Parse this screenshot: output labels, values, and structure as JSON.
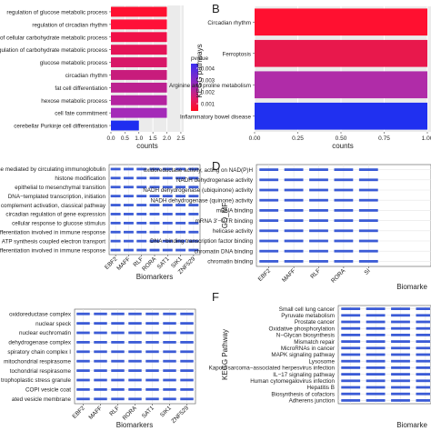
{
  "chart_data": [
    {
      "panel": "A",
      "type": "bar",
      "orientation": "horizontal",
      "categories": [
        "regulation of glucose metabolic process",
        "regulation of circadian rhythm",
        "of cellular carbohydrate metabolic process",
        "egulation of carbohydrate metabolic process",
        "glucose metabolic process",
        "circadian rhythm",
        "fat cell differentiation",
        "hexose metabolic process",
        "cell fate commitment",
        "cerebellar Purkinje cell differentiation"
      ],
      "values": [
        2,
        2,
        2,
        2,
        2,
        2,
        2,
        2,
        2,
        1
      ],
      "colors": [
        "#ff1030",
        "#ff1038",
        "#f01048",
        "#e41458",
        "#d81868",
        "#c81c7c",
        "#bc2090",
        "#b424a0",
        "#a42ab8",
        "#1f2df0"
      ],
      "xlabel": "counts",
      "xticks": [
        "0.0",
        "0.5",
        "1.0",
        "1.5",
        "2.0",
        "2.5"
      ],
      "xlim": [
        0,
        2.6
      ],
      "legend": {
        "title": "pvalue",
        "ticks": [
          "0.004",
          "0.003",
          "0.002",
          "0.001"
        ]
      }
    },
    {
      "panel": "B",
      "type": "bar",
      "orientation": "horizontal",
      "categories": [
        "Circadian rhythm",
        "Ferroptosis",
        "Arginine and proline metabolism",
        "Inflammatory bowel disease"
      ],
      "values": [
        1,
        1,
        1,
        1
      ],
      "colors": [
        "#ff1030",
        "#e8184c",
        "#b02ca8",
        "#2030f0"
      ],
      "xlabel": "counts",
      "ylabel": "KEGG pathways",
      "xticks": [
        "0.00",
        "0.25",
        "0.50",
        "0.75",
        "1.00"
      ],
      "xlim": [
        0,
        1
      ]
    },
    {
      "panel": "C",
      "type": "heatmap",
      "rows": [
        "d immune response mediated by circulating immunoglobulin",
        "histone modification",
        "epithelial to mesenchymal transition",
        "DNA−templated transcription, initiation",
        "complement activation, classical pathway",
        "circadian regulation of gene expression",
        "cellular response to glucose stimulus",
        "alpha−beta T cell differentiation involved in immune response",
        "ATP synthesis coupled electron transport",
        "differentiation involved in immune response"
      ],
      "columns": [
        "EBF2",
        "MAFF",
        "RLF",
        "RORA",
        "SAT1",
        "SIK1",
        "ZNF529"
      ],
      "xlabel": "Biomarkers"
    },
    {
      "panel": "D",
      "type": "heatmap",
      "rows": [
        "oxidoreductase activity, acting on NAD(P)H",
        "NADH dehydrogenase activity",
        "NADH dehydrogenase (ubiquinone) activity",
        "NADH dehydrogenase (quinone) activity",
        "mRNA binding",
        "mRNA 3'−UTR binding",
        "helicase activity",
        "DNA−binding transcription factor binding",
        "chromatin DNA binding",
        "chromatin binding"
      ],
      "columns": [
        "EBF2",
        "MAFF",
        "RLF",
        "RORA",
        "SI"
      ],
      "ylabel": "GO_MF",
      "xlabel": "Biomarke"
    },
    {
      "panel": "E",
      "type": "heatmap",
      "rows": [
        "oxidoreductase complex",
        "nuclear speck",
        "nuclear euchromatin",
        "dehydrogenase complex",
        "spiratory chain complex I",
        "mitochondrial respirasome",
        "tochondrial respirasome",
        "trophoplastic stress granule",
        "COPI vesicle coat",
        "ated vesicle membrane"
      ],
      "columns": [
        "EBF2",
        "MAFF",
        "RLF",
        "RORA",
        "SAT1",
        "SIK1",
        "ZNF529"
      ],
      "xlabel": "Biomarkers"
    },
    {
      "panel": "F",
      "type": "heatmap",
      "rows": [
        "Small cell lung cancer",
        "Pyruvate metabolism",
        "Prostate cancer",
        "Oxidative phosphorylation",
        "N−Glycan biosynthesis",
        "Mismatch repair",
        "MicroRNAs in cancer",
        "MAPK signaling pathway",
        "Lysosome",
        "Kaposi sarcoma−associated herpesvirus infection",
        "IL−17 signaling pathway",
        "Human cytomegalovirus infection",
        "Hepatitis B",
        "Biosynthesis of cofactors",
        "Adherens junction"
      ],
      "columns": [],
      "ylabel": "KEGG Pathway",
      "xlabel": "Biomarke"
    }
  ],
  "panel_letters": [
    "B",
    "D",
    "F"
  ],
  "colors": {
    "cell": "#3b5bd6",
    "grid": "#e6e6e6",
    "axis": "#444444"
  }
}
